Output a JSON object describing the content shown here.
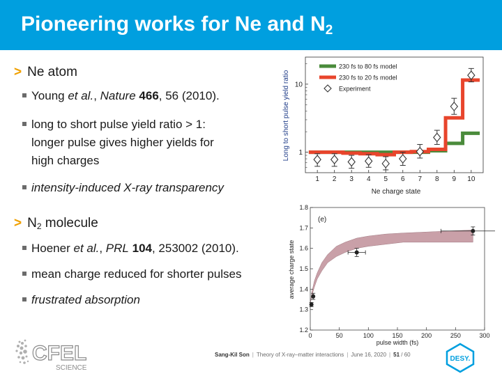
{
  "slide": {
    "title_main": "Pioneering works for Ne and N",
    "title_sub": "2"
  },
  "ne_section": {
    "heading": "Ne atom",
    "ref": {
      "author": "Young ",
      "etal": "et al.",
      "sep": ", ",
      "journal": "Nature",
      "vol": "466",
      "rest": ", 56 (2010)."
    },
    "point1_line1": "long to short pulse yield ratio > 1:",
    "point1_line2": "longer pulse gives higher yields for",
    "point1_line3": "high charges",
    "point2": "intensity-induced X-ray transparency"
  },
  "n2_section": {
    "heading_main": "N",
    "heading_sub": "2",
    "heading_rest": " molecule",
    "ref": {
      "author": "Hoener ",
      "etal": "et al.",
      "sep": ", ",
      "journal": "PRL",
      "vol": "104",
      "rest": ", 253002 (2010)."
    },
    "point1": "mean charge reduced for shorter pulses",
    "point2": "frustrated absorption"
  },
  "chart_data": [
    {
      "type": "line",
      "ylabel": "Long to short pulse yield ratio",
      "xlabel": "Ne charge state",
      "yscale": "log",
      "ylim": [
        0.5,
        25
      ],
      "xlim": [
        0.3,
        10.7
      ],
      "x_ticks": [
        "1",
        "2",
        "3",
        "4",
        "5",
        "6",
        "7",
        "8",
        "9",
        "10"
      ],
      "y_ticks": [
        "1",
        "10"
      ],
      "legend_position": "top-left",
      "series": [
        {
          "name": "230 fs to 80 fs model",
          "color": "#4a8b3b",
          "x": [
            1,
            2,
            3,
            4,
            5,
            6,
            7,
            8,
            9,
            10
          ],
          "values": [
            1.0,
            1.0,
            1.0,
            1.0,
            1.0,
            1.0,
            1.0,
            1.05,
            1.35,
            1.9
          ]
        },
        {
          "name": "230 fs to 20 fs model",
          "color": "#e8452c",
          "x": [
            1,
            2,
            3,
            4,
            5,
            6,
            7,
            8,
            9,
            10
          ],
          "values": [
            1.0,
            1.0,
            0.97,
            0.95,
            0.92,
            1.0,
            1.02,
            1.1,
            3.2,
            11.5
          ]
        },
        {
          "name": "Experiment",
          "color": "#333333",
          "x": [
            1,
            2,
            3,
            4,
            5,
            6,
            7,
            8,
            9,
            10
          ],
          "values": [
            0.78,
            0.78,
            0.72,
            0.74,
            0.68,
            0.8,
            1.02,
            1.65,
            4.7,
            13.5
          ],
          "err_low": [
            0.62,
            0.62,
            0.58,
            0.6,
            0.55,
            0.64,
            0.82,
            1.3,
            3.6,
            10.8
          ],
          "err_high": [
            0.95,
            0.95,
            0.9,
            0.92,
            0.86,
            1.0,
            1.3,
            2.1,
            6.2,
            17.0
          ]
        }
      ]
    },
    {
      "type": "scatter",
      "annotation": "(e)",
      "xlabel": "pulse width (fs)",
      "ylabel": "average charge state",
      "xlim": [
        0,
        300
      ],
      "ylim": [
        1.2,
        1.8
      ],
      "x_ticks": [
        "0",
        "50",
        "100",
        "150",
        "200",
        "250",
        "300"
      ],
      "y_ticks": [
        "1.2",
        "1.3",
        "1.4",
        "1.5",
        "1.6",
        "1.7",
        "1.8"
      ],
      "band_color": "#c9a0a8",
      "band": {
        "x": [
          0,
          3,
          7,
          12,
          20,
          30,
          45,
          60,
          80,
          100,
          130,
          160,
          200,
          240,
          280
        ],
        "lower": [
          1.33,
          1.37,
          1.41,
          1.45,
          1.49,
          1.53,
          1.56,
          1.58,
          1.6,
          1.61,
          1.62,
          1.63,
          1.63,
          1.63,
          1.63
        ],
        "upper": [
          1.33,
          1.39,
          1.44,
          1.48,
          1.53,
          1.57,
          1.61,
          1.63,
          1.65,
          1.66,
          1.67,
          1.675,
          1.68,
          1.685,
          1.69
        ]
      },
      "points": [
        {
          "x": 2,
          "y": 1.325,
          "yerr": 0.01,
          "xerr": 0
        },
        {
          "x": 5,
          "y": 1.365,
          "yerr": 0.015,
          "xerr": 1
        },
        {
          "x": 80,
          "y": 1.58,
          "yerr": 0.02,
          "xerr": 15
        },
        {
          "x": 280,
          "y": 1.685,
          "yerr": 0.02,
          "xerr": 55
        }
      ]
    }
  ],
  "footer": {
    "author": "Sang-Kil Son",
    "talk": "Theory of X-ray–matter interactions",
    "date": "June 16, 2020",
    "page": "51",
    "total": "/ 60"
  },
  "logos": {
    "cfel_text": "CFEL",
    "science_text": "SCIENCE",
    "desy_text": "DESY."
  }
}
